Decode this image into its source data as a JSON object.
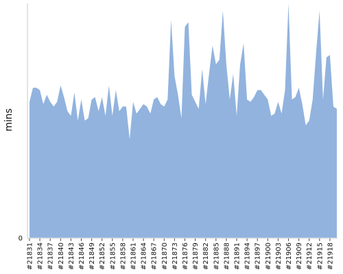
{
  "chart_data": {
    "type": "area",
    "title": "",
    "xlabel": "",
    "ylabel": "mins",
    "area_color": "#92b3de",
    "ylim": [
      0,
      100
    ],
    "ytick_labels": [
      "0"
    ],
    "x": [
      "#21831",
      "#21832",
      "#21833",
      "#21834",
      "#21835",
      "#21836",
      "#21837",
      "#21838",
      "#21839",
      "#21840",
      "#21841",
      "#21842",
      "#21843",
      "#21844",
      "#21845",
      "#21846",
      "#21847",
      "#21848",
      "#21849",
      "#21850",
      "#21851",
      "#21852",
      "#21853",
      "#21854",
      "#21855",
      "#21856",
      "#21857",
      "#21858",
      "#21859",
      "#21860",
      "#21861",
      "#21862",
      "#21863",
      "#21864",
      "#21865",
      "#21866",
      "#21867",
      "#21868",
      "#21869",
      "#21870",
      "#21871",
      "#21872",
      "#21873",
      "#21874",
      "#21875",
      "#21876",
      "#21877",
      "#21878",
      "#21879",
      "#21880",
      "#21881",
      "#21882",
      "#21883",
      "#21884",
      "#21885",
      "#21886",
      "#21887",
      "#21888",
      "#21889",
      "#21890",
      "#21891",
      "#21892",
      "#21893",
      "#21894",
      "#21895",
      "#21896",
      "#21897",
      "#21898",
      "#21899",
      "#21900",
      "#21901",
      "#21902",
      "#21903",
      "#21904",
      "#21905",
      "#21906",
      "#21907",
      "#21908",
      "#21909",
      "#21910",
      "#21911",
      "#21912",
      "#21913",
      "#21914",
      "#21915",
      "#21916",
      "#21917",
      "#21918",
      "#21919",
      "#21920"
    ],
    "values": [
      58,
      64,
      64,
      63,
      57,
      61,
      58,
      56,
      58,
      65,
      60,
      54,
      52,
      62,
      50,
      59,
      50,
      51,
      59,
      60,
      54,
      60,
      52,
      65,
      52,
      63,
      54,
      56,
      56,
      42,
      58,
      53,
      55,
      57,
      56,
      53,
      59,
      60,
      57,
      56,
      59,
      93,
      69,
      61,
      51,
      90,
      92,
      61,
      58,
      55,
      72,
      57,
      70,
      82,
      74,
      76,
      97,
      74,
      59,
      70,
      52,
      74,
      83,
      59,
      58,
      60,
      63,
      63,
      61,
      59,
      52,
      53,
      58,
      53,
      63,
      100,
      59,
      60,
      64,
      57,
      48,
      50,
      59,
      79,
      97,
      59,
      77,
      78,
      56,
      55
    ],
    "xtick_labels": [
      "#21831",
      "#21834",
      "#21837",
      "#21840",
      "#21843",
      "#21846",
      "#21849",
      "#21852",
      "#21855",
      "#21858",
      "#21861",
      "#21864",
      "#21867",
      "#21870",
      "#21873",
      "#21876",
      "#21879",
      "#21882",
      "#21885",
      "#21888",
      "#21891",
      "#21894",
      "#21897",
      "#21900",
      "#21903",
      "#21906",
      "#21909",
      "#21912",
      "#21915",
      "#21918"
    ]
  }
}
